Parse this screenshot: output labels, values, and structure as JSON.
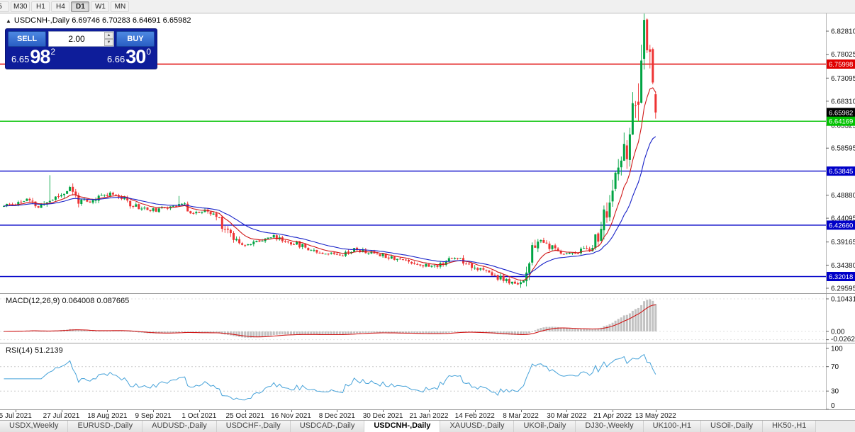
{
  "toolbar": {
    "periods": [
      {
        "label": "5",
        "active": false,
        "clipped": true
      },
      {
        "label": "M30",
        "active": false
      },
      {
        "label": "H1",
        "active": false
      },
      {
        "label": "H4",
        "active": false
      },
      {
        "label": "D1",
        "active": true
      },
      {
        "label": "W1",
        "active": false
      },
      {
        "label": "MN",
        "active": false
      }
    ]
  },
  "chart_header": {
    "collapse_icon": "▲",
    "title": "USDCNH-,Daily",
    "ohlc": "6.69746 6.70283 6.64691 6.65982"
  },
  "trade_panel": {
    "sell_label": "SELL",
    "buy_label": "BUY",
    "lot_size": "2.00",
    "spin_up_icon": "▲",
    "spin_down_icon": "▼",
    "sell_price": {
      "prefix": "6.65",
      "big": "98",
      "sup": "2"
    },
    "buy_price": {
      "prefix": "6.66",
      "big": "30",
      "sup": "0"
    }
  },
  "indicators": {
    "macd_label": "MACD(12,26,9) 0.064008 0.087665",
    "rsi_label": "RSI(14) 51.2139"
  },
  "chart_data": {
    "type": "candlestick",
    "symbol": "USDCNH-",
    "timeframe": "Daily",
    "current_price": 6.65982,
    "last_candle": {
      "open": 6.69746,
      "high": 6.70283,
      "low": 6.64691,
      "close": 6.65982
    },
    "price_axis": {
      "range": [
        6.2857,
        6.8648
      ],
      "ticks": [
        6.8281,
        6.78025,
        6.73095,
        6.6831,
        6.63325,
        6.58595,
        6.4888,
        6.44095,
        6.39165,
        6.3438,
        6.29595
      ]
    },
    "levels": [
      {
        "value": 6.75998,
        "color": "#e00000",
        "line": true
      },
      {
        "value": 6.65982,
        "color": "#000000",
        "line": false
      },
      {
        "value": 6.64169,
        "color": "#00c200",
        "line": true
      },
      {
        "value": 6.53845,
        "color": "#0000c8",
        "line": true
      },
      {
        "value": 6.4266,
        "color": "#0000c8",
        "line": true
      },
      {
        "value": 6.32018,
        "color": "#0000c8",
        "line": true
      }
    ],
    "x_axis": {
      "labels": [
        "5 Jul 2021",
        "27 Jul 2021",
        "18 Aug 2021",
        "9 Sep 2021",
        "1 Oct 2021",
        "25 Oct 2021",
        "16 Nov 2021",
        "8 Dec 2021",
        "30 Dec 2021",
        "21 Jan 2022",
        "14 Feb 2022",
        "8 Mar 2022",
        "30 Mar 2022",
        "21 Apr 2022",
        "13 May 2022"
      ],
      "indices": [
        4,
        20,
        36,
        52,
        68,
        84,
        100,
        116,
        132,
        148,
        164,
        180,
        196,
        212,
        227
      ]
    },
    "synthesis": {
      "candle_count": 228,
      "seed": 11,
      "base_vol": 0.0045,
      "close_anchors": [
        [
          0,
          6.466
        ],
        [
          4,
          6.472
        ],
        [
          8,
          6.479
        ],
        [
          12,
          6.463
        ],
        [
          16,
          6.478
        ],
        [
          20,
          6.49
        ],
        [
          23,
          6.503
        ],
        [
          26,
          6.478
        ],
        [
          30,
          6.472
        ],
        [
          34,
          6.488
        ],
        [
          38,
          6.494
        ],
        [
          42,
          6.478
        ],
        [
          46,
          6.466
        ],
        [
          50,
          6.459
        ],
        [
          54,
          6.457
        ],
        [
          58,
          6.468
        ],
        [
          62,
          6.47
        ],
        [
          66,
          6.452
        ],
        [
          70,
          6.455
        ],
        [
          74,
          6.445
        ],
        [
          78,
          6.415
        ],
        [
          82,
          6.392
        ],
        [
          86,
          6.386
        ],
        [
          90,
          6.399
        ],
        [
          94,
          6.403
        ],
        [
          98,
          6.393
        ],
        [
          102,
          6.388
        ],
        [
          106,
          6.379
        ],
        [
          110,
          6.371
        ],
        [
          114,
          6.368
        ],
        [
          118,
          6.367
        ],
        [
          122,
          6.377
        ],
        [
          126,
          6.371
        ],
        [
          130,
          6.368
        ],
        [
          134,
          6.362
        ],
        [
          138,
          6.356
        ],
        [
          142,
          6.35
        ],
        [
          146,
          6.344
        ],
        [
          150,
          6.341
        ],
        [
          154,
          6.353
        ],
        [
          158,
          6.36
        ],
        [
          162,
          6.347
        ],
        [
          166,
          6.334
        ],
        [
          170,
          6.325
        ],
        [
          174,
          6.313
        ],
        [
          178,
          6.304
        ],
        [
          181,
          6.316
        ],
        [
          183,
          6.335
        ],
        [
          185,
          6.393
        ],
        [
          188,
          6.39
        ],
        [
          192,
          6.374
        ],
        [
          196,
          6.367
        ],
        [
          200,
          6.372
        ],
        [
          204,
          6.381
        ],
        [
          207,
          6.404
        ],
        [
          209,
          6.438
        ],
        [
          211,
          6.472
        ],
        [
          213,
          6.52
        ],
        [
          215,
          6.552
        ],
        [
          217,
          6.59
        ],
        [
          218,
          6.625
        ],
        [
          219,
          6.652
        ],
        [
          220,
          6.641
        ],
        [
          221,
          6.688
        ],
        [
          222,
          6.762
        ],
        [
          223,
          6.818
        ],
        [
          224,
          6.785
        ],
        [
          225,
          6.802
        ],
        [
          226,
          6.742
        ],
        [
          227,
          6.65982
        ]
      ],
      "spikes": [
        {
          "index": 16,
          "high": 6.53
        },
        {
          "index": 61,
          "high": 6.487
        }
      ]
    },
    "moving_averages": [
      {
        "period": 10,
        "type": "ema",
        "color": "#d01818"
      },
      {
        "period": 24,
        "type": "ema",
        "color": "#1822c8"
      }
    ],
    "candle_colors": {
      "up": "#00a443",
      "down": "#ee3333"
    },
    "macd": {
      "params": [
        12,
        26,
        9
      ],
      "value": 0.064008,
      "signal_value": 0.087665,
      "range": [
        -0.0363,
        0.1202
      ],
      "ticks": [
        {
          "v": 0.104313,
          "label": "0.104313"
        },
        {
          "v": 0,
          "label": "0.00"
        },
        {
          "v": -0.02624,
          "label": "-0.02624"
        }
      ],
      "hist_color": "#c2c2c2",
      "signal_color": "#d01818"
    },
    "rsi": {
      "period": 14,
      "value": 51.2139,
      "range": [
        0,
        108
      ],
      "ticks": [
        100,
        70,
        30,
        0
      ],
      "level_lines": [
        70,
        30
      ],
      "color": "#46a2d9"
    }
  },
  "tabs": {
    "active_index": 5,
    "items": [
      "USDX,Weekly",
      "EURUSD-,Daily",
      "AUDUSD-,Daily",
      "USDCHF-,Daily",
      "USDCAD-,Daily",
      "USDCNH-,Daily",
      "XAUUSD-,Daily",
      "UKOil-,Daily",
      "DJ30-,Weekly",
      "UK100-,H1",
      "USOil-,Daily",
      "HK50-,H1"
    ]
  }
}
